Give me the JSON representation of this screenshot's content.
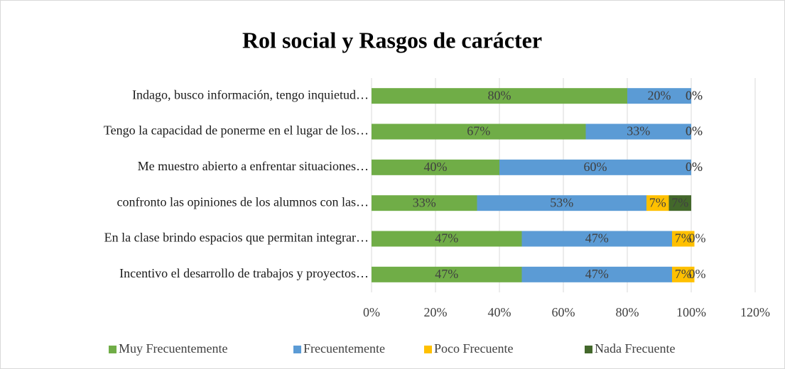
{
  "chart_data": {
    "type": "stacked_barh",
    "title": "Rol social y Rasgos de carácter",
    "categories": [
      "Indago, busco información, tengo inquietud…",
      "Tengo la capacidad de ponerme en el lugar de los…",
      "Me muestro abierto a enfrentar situaciones…",
      "confronto las opiniones de los alumnos con las…",
      "En la clase brindo espacios que permitan integrar…",
      "Incentivo el desarrollo de trabajos y proyectos…"
    ],
    "series": [
      {
        "name": "Muy Frecuentemente",
        "color": "#70ad47",
        "values": [
          80,
          67,
          40,
          33,
          47,
          47
        ],
        "value_labels": [
          "80%",
          "67%",
          "40%",
          "33%",
          "47%",
          "47%"
        ]
      },
      {
        "name": "Frecuentemente",
        "color": "#5b9bd5",
        "values": [
          20,
          33,
          60,
          53,
          47,
          47
        ],
        "value_labels": [
          "20%",
          "33%",
          "60%",
          "53%",
          "47%",
          "47%"
        ]
      },
      {
        "name": "Poco Frecuente",
        "color": "#ffc000",
        "values": [
          0,
          0,
          0,
          7,
          7,
          7
        ],
        "value_labels": [
          "0%",
          "0%",
          "0%",
          "7%",
          "7%",
          "7%"
        ]
      },
      {
        "name": "Nada Frecuente",
        "color": "#43682b",
        "values": [
          0,
          0,
          0,
          7,
          0,
          0
        ],
        "value_labels": [
          "0%",
          "0%",
          "0%",
          "7%",
          "0%",
          "0%"
        ]
      }
    ],
    "xlim": [
      0,
      120
    ],
    "xticks": [
      {
        "value": 0,
        "label": "0%"
      },
      {
        "value": 20,
        "label": "20%"
      },
      {
        "value": 40,
        "label": "40%"
      },
      {
        "value": 60,
        "label": "60%"
      },
      {
        "value": 80,
        "label": "80%"
      },
      {
        "value": 100,
        "label": "100%"
      },
      {
        "value": 120,
        "label": "120%"
      }
    ],
    "grid": true,
    "legend": "bottom"
  }
}
